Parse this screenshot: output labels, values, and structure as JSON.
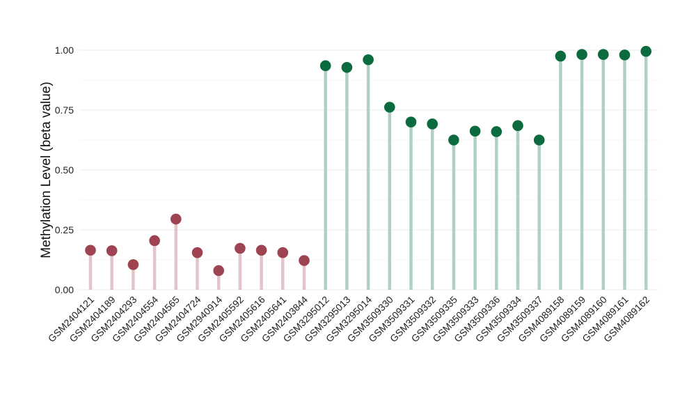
{
  "chart_data": {
    "type": "lollipop",
    "ylabel": "Methylation Level (beta value)",
    "xlabel": "",
    "ylim": [
      0,
      1.0
    ],
    "yticks": [
      "0.00",
      "0.25",
      "0.50",
      "0.75",
      "1.00"
    ],
    "grid": true,
    "categories": [
      "GSM2404121",
      "GSM2404189",
      "GSM2404293",
      "GSM2404554",
      "GSM2404565",
      "GSM2404724",
      "GSM2940914",
      "GSM2405592",
      "GSM2405616",
      "GSM2405641",
      "GSM2403844",
      "GSM3295012",
      "GSM3295013",
      "GSM3295014",
      "GSM3509330",
      "GSM3509331",
      "GSM3509332",
      "GSM3509335",
      "GSM3509333",
      "GSM3509336",
      "GSM3509334",
      "GSM3509337",
      "GSM4089158",
      "GSM4089159",
      "GSM4089160",
      "GSM4089161",
      "GSM4089162"
    ],
    "values": [
      0.165,
      0.163,
      0.105,
      0.205,
      0.295,
      0.155,
      0.08,
      0.173,
      0.165,
      0.155,
      0.122,
      0.935,
      0.928,
      0.96,
      0.762,
      0.7,
      0.692,
      0.625,
      0.662,
      0.66,
      0.685,
      0.625,
      0.975,
      0.982,
      0.982,
      0.98,
      0.995
    ],
    "groups": [
      "low",
      "low",
      "low",
      "low",
      "low",
      "low",
      "low",
      "low",
      "low",
      "low",
      "low",
      "high",
      "high",
      "high",
      "high",
      "high",
      "high",
      "high",
      "high",
      "high",
      "high",
      "high",
      "high",
      "high",
      "high",
      "high",
      "high"
    ],
    "colors": {
      "low_point": "#9e4351",
      "low_stem": "#e2c5ca",
      "high_point": "#0b6b3f",
      "high_stem": "#afd0c3",
      "grid_major": "#ebebeb",
      "grid_minor": "#f5f5f5"
    }
  }
}
